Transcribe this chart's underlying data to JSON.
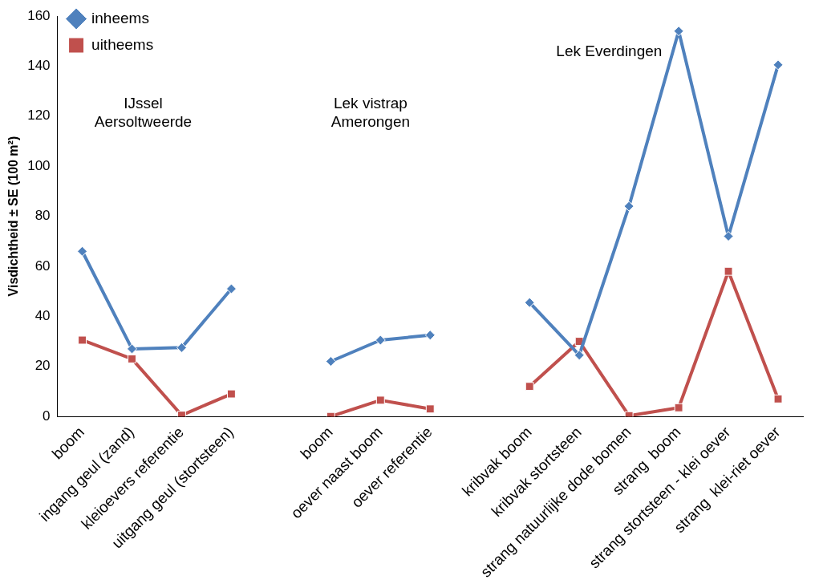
{
  "chart_data": {
    "type": "line",
    "ylabel": "Visdichtheid ± SE (100 m²)",
    "categories": [
      "boom",
      "ingang geul (zand)",
      "kleioevers referentie",
      "uitgang geul (stortsteen)",
      null,
      "boom",
      "oever naast boom",
      "oever referentie",
      null,
      "kribvak boom",
      "kribvak stortsteen",
      "strang natuurlijke dode bomen",
      "strang  boom",
      "strang stortsteen - klei oever",
      "strang  klei-riet oever"
    ],
    "series": [
      {
        "name": "inheems",
        "color": "#4f81bd",
        "marker": "diamond",
        "values": [
          66,
          27,
          27.5,
          51,
          null,
          22,
          30.5,
          32.5,
          null,
          45.5,
          24.5,
          84,
          154,
          72,
          140.5
        ]
      },
      {
        "name": "uitheems",
        "color": "#c0504d",
        "marker": "square",
        "values": [
          30.5,
          23,
          0.5,
          9,
          null,
          0,
          6.5,
          3,
          null,
          12,
          30,
          0.3,
          3.5,
          58,
          7
        ]
      }
    ],
    "ylim": [
      0,
      160
    ],
    "yticks": [
      0,
      20,
      40,
      60,
      80,
      100,
      120,
      140,
      160
    ],
    "grid": false,
    "legend": "top left",
    "annotations": [
      "IJssel\nAersoltweerde",
      "Lek vistrap\nAmerongen",
      "Lek Everdingen"
    ]
  }
}
